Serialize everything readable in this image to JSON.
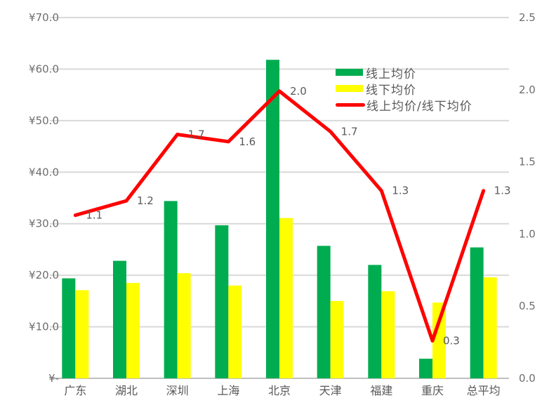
{
  "chart_data": {
    "type": "combo-bar-line",
    "title": "",
    "categories": [
      "广东",
      "湖北",
      "深圳",
      "上海",
      "北京",
      "天津",
      "福建",
      "重庆",
      "总平均"
    ],
    "series": [
      {
        "name": "线上均价",
        "type": "bar",
        "axis": "left",
        "color": "#00AC50",
        "values": [
          19.4,
          22.8,
          34.4,
          29.7,
          61.8,
          25.7,
          22.0,
          3.8,
          25.4
        ]
      },
      {
        "name": "线下均价",
        "type": "bar",
        "axis": "left",
        "color": "#FFFF00",
        "values": [
          17.1,
          18.5,
          20.4,
          18.0,
          31.1,
          15.0,
          16.9,
          14.7,
          19.6
        ]
      },
      {
        "name": "线上均价/线下均价",
        "type": "line",
        "axis": "right",
        "color": "#FF0000",
        "values": [
          1.13,
          1.23,
          1.69,
          1.64,
          1.99,
          1.71,
          1.3,
          0.26,
          1.3
        ],
        "labels": [
          "1.1",
          "1.2",
          "1.7",
          "1.6",
          "2.0",
          "1.7",
          "1.3",
          "0.3",
          "1.3"
        ]
      }
    ],
    "left_axis": {
      "ticks": [
        "¥70.0",
        "¥60.0",
        "¥50.0",
        "¥40.0",
        "¥30.0",
        "¥20.0",
        "¥10.0",
        "¥-"
      ],
      "tick_values": [
        70,
        60,
        50,
        40,
        30,
        20,
        10,
        0
      ],
      "min": 0,
      "max": 70
    },
    "right_axis": {
      "ticks": [
        "2.5",
        "2.0",
        "1.5",
        "1.0",
        "0.5",
        "0.0"
      ],
      "tick_values": [
        2.5,
        2.0,
        1.5,
        1.0,
        0.5,
        0.0
      ],
      "min": 0,
      "max": 2.5
    },
    "grid": true,
    "legend_position": "top-right"
  },
  "colors": {
    "gridline": "#D9D9D9",
    "axis_line": "#BFBFBF",
    "tick_text": "#6E6E6E",
    "label_text": "#595959",
    "category_text": "#595959",
    "background": "#FFFFFF"
  }
}
